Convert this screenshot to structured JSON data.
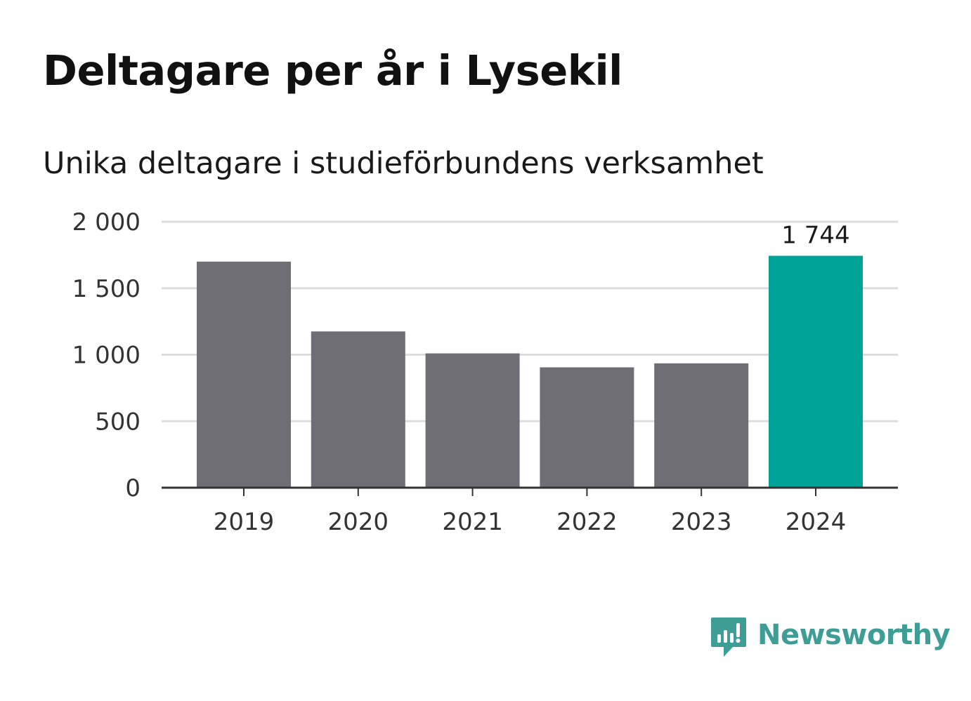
{
  "header": {
    "title": "Deltagare per år i Lysekil",
    "subtitle": "Unika deltagare i studieförbundens verksamhet"
  },
  "chart_data": {
    "type": "bar",
    "title": "Deltagare per år i Lysekil",
    "subtitle": "Unika deltagare i studieförbundens verksamhet",
    "categories": [
      "2019",
      "2020",
      "2021",
      "2022",
      "2023",
      "2024"
    ],
    "values": [
      1700,
      1175,
      1010,
      905,
      935,
      1744
    ],
    "ylim": [
      0,
      2000
    ],
    "yticks": [
      0,
      500,
      1000,
      1500,
      2000
    ],
    "ytick_labels": [
      "0",
      "500",
      "1 000",
      "1 500",
      "2 000"
    ],
    "highlight_index": 5,
    "data_labels": [
      {
        "index": 5,
        "text": "1 744"
      }
    ],
    "grid": true,
    "colors": {
      "bar": "#6f6e74",
      "highlight": "#00a398",
      "grid": "#dddddd",
      "axis": "#333333"
    }
  },
  "brand": {
    "name": "Newsworthy",
    "icon": "newsworthy-logo-icon",
    "color": "#3e9e96"
  }
}
